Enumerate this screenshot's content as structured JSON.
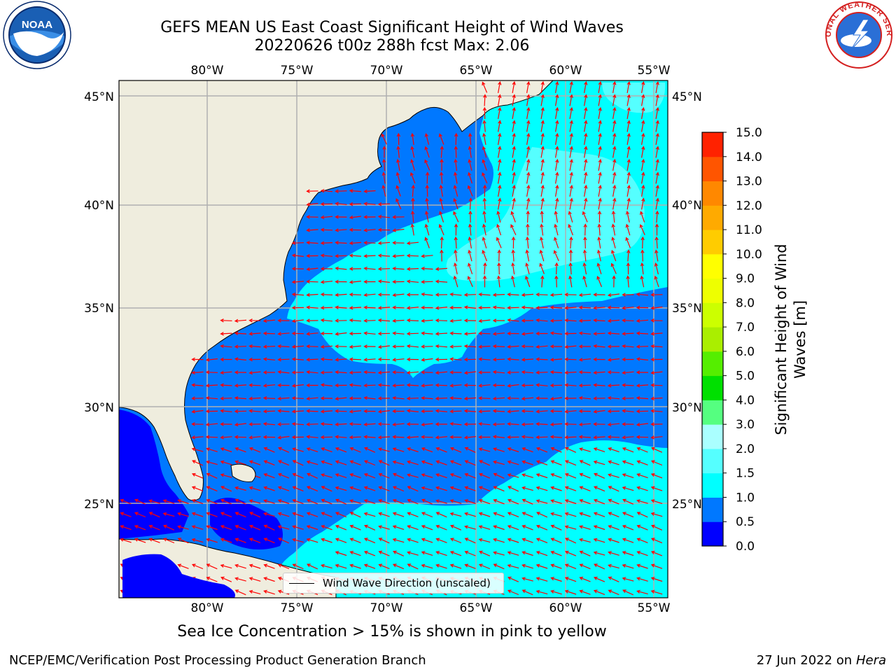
{
  "title": {
    "line1": "GEFS MEAN US East Coast Significant Height of Wind Waves",
    "line2": "20220626 t00z 288h fcst   Max: 2.06"
  },
  "map": {
    "lon_labels": [
      "80°W",
      "75°W",
      "70°W",
      "65°W",
      "60°W",
      "55°W"
    ],
    "lat_labels": [
      "45°N",
      "40°N",
      "35°N",
      "30°N",
      "25°N"
    ],
    "legend_text": "Wind Wave Direction (unscaled)",
    "colors": {
      "land": "#efedde",
      "band_0_05": "#0000ff",
      "band_05_1": "#0078ff",
      "band_1_15": "#00ffff",
      "band_15_2": "#55ffff",
      "arrow": "#ff0000",
      "grid": "#b0b0b0"
    }
  },
  "colorbar": {
    "label_line1": "Significant Height of Wind",
    "label_line2": "Waves [m]",
    "ticks": [
      "0.0",
      "0.5",
      "1.0",
      "1.5",
      "2.0",
      "3.0",
      "4.0",
      "5.0",
      "6.0",
      "7.0",
      "8.0",
      "9.0",
      "10.0",
      "11.0",
      "12.0",
      "13.0",
      "14.0",
      "15.0"
    ],
    "colors": [
      "#0000ff",
      "#0078ff",
      "#00ffff",
      "#55ffff",
      "#aaffff",
      "#55ff80",
      "#00e000",
      "#55ee00",
      "#aaee00",
      "#ccff00",
      "#eeff00",
      "#ffff00",
      "#ffcc00",
      "#ffaa00",
      "#ff8800",
      "#ff5500",
      "#ff2200"
    ]
  },
  "subtitle": "Sea Ice Concentration > 15% is shown in pink to yellow",
  "footer": {
    "left": "NCEP/EMC/Verification Post Processing Product Generation Branch",
    "date": "27 Jun 2022 on",
    "host": "Hera"
  },
  "logos": {
    "noaa_text": "NOAA",
    "nws_text": "NATIONAL WEATHER SERVICE"
  }
}
